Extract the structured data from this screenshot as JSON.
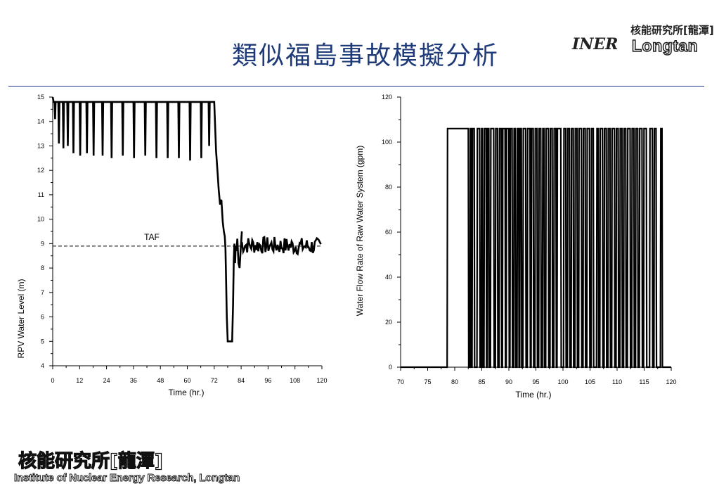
{
  "slide": {
    "title": "類似福島事故模擬分析"
  },
  "logo_top": {
    "org": "核能研究所[龍潭]",
    "mark": "INER",
    "place": "Longtan"
  },
  "logo_bottom": {
    "org": "核能研究所[龍潭]",
    "name": "Institute of Nuclear Energy Research, Longtan"
  },
  "chart_data": [
    {
      "type": "line",
      "title": "",
      "xlabel": "Time (hr.)",
      "ylabel": "RPV Water Level (m)",
      "xlim": [
        0,
        120
      ],
      "ylim": [
        4,
        15
      ],
      "xticks": [
        0,
        12,
        24,
        36,
        48,
        60,
        72,
        84,
        96,
        108,
        120
      ],
      "yticks": [
        4,
        5,
        6,
        7,
        8,
        9,
        10,
        11,
        12,
        13,
        14,
        15
      ],
      "grid": false,
      "reference_line": {
        "label": "TAF",
        "y": 8.9,
        "style": "dashed"
      },
      "cycles": [
        {
          "t": 0.8,
          "min": 14.1
        },
        {
          "t": 2.5,
          "min": 13.1
        },
        {
          "t": 4.5,
          "min": 12.9
        },
        {
          "t": 6.5,
          "min": 13.0
        },
        {
          "t": 9,
          "min": 12.7
        },
        {
          "t": 12,
          "min": 12.6
        },
        {
          "t": 15,
          "min": 12.7
        },
        {
          "t": 18,
          "min": 12.6
        },
        {
          "t": 22,
          "min": 12.6
        },
        {
          "t": 26,
          "min": 12.5
        },
        {
          "t": 31,
          "min": 12.6
        },
        {
          "t": 36,
          "min": 12.5
        },
        {
          "t": 41,
          "min": 12.6
        },
        {
          "t": 46,
          "min": 12.5
        },
        {
          "t": 51,
          "min": 12.5
        },
        {
          "t": 56,
          "min": 12.5
        },
        {
          "t": 61,
          "min": 12.4
        },
        {
          "t": 66,
          "min": 12.5
        },
        {
          "t": 69.5,
          "min": 13.0
        }
      ],
      "series": [
        {
          "x": [
            72,
            72.8,
            73.5,
            74.0,
            74.6,
            75.2,
            75.8,
            76.3,
            76.7,
            77.0,
            77.3,
            77.6,
            78.0,
            79.0,
            80.0,
            80.4,
            80.7,
            81.0,
            81.3,
            81.6,
            81.9,
            82.3,
            82.8,
            83.3,
            83.8,
            84.3
          ],
          "y": [
            14.8,
            12.8,
            11.9,
            11.2,
            10.6,
            10.8,
            9.9,
            9.5,
            9.3,
            8.8,
            7.5,
            6.0,
            5.0,
            5.0,
            5.0,
            6.5,
            8.3,
            9.0,
            8.2,
            8.9,
            8.7,
            9.2,
            8.2,
            8.0,
            8.8,
            9.5
          ]
        }
      ],
      "noise_band": {
        "from": 84,
        "to": 120,
        "mean": 8.95,
        "range": [
          8.5,
          9.3
        ]
      }
    },
    {
      "type": "line",
      "title": "",
      "xlabel": "Time (hr.)",
      "ylabel": "Water Flow Rate of Raw Water System (gpm)",
      "xlim": [
        70,
        120
      ],
      "ylim": [
        0,
        120
      ],
      "xticks": [
        70,
        75,
        80,
        85,
        90,
        95,
        100,
        105,
        110,
        115,
        120
      ],
      "yticks": [
        0,
        20,
        40,
        60,
        80,
        100,
        120
      ],
      "grid": false,
      "on_value": 106,
      "on_intervals": [
        [
          78.6,
          82.5
        ],
        [
          82.8,
          83.0
        ],
        [
          83.2,
          83.6
        ],
        [
          84.1,
          84.6
        ],
        [
          84.9,
          85.1
        ],
        [
          85.4,
          85.8
        ],
        [
          86.0,
          86.3
        ],
        [
          86.6,
          87.2
        ],
        [
          87.5,
          87.9
        ],
        [
          88.2,
          88.6
        ],
        [
          88.8,
          89.3
        ],
        [
          89.5,
          90.0
        ],
        [
          90.2,
          90.6
        ],
        [
          90.9,
          91.2
        ],
        [
          91.5,
          91.8
        ],
        [
          92.0,
          92.3
        ],
        [
          92.6,
          93.1
        ],
        [
          93.4,
          93.9
        ],
        [
          94.1,
          94.5
        ],
        [
          94.8,
          95.2
        ],
        [
          95.5,
          95.9
        ],
        [
          96.2,
          96.5
        ],
        [
          96.8,
          97.3
        ],
        [
          97.6,
          98.0
        ],
        [
          98.3,
          98.7
        ],
        [
          98.9,
          99.6
        ],
        [
          100.1,
          100.5
        ],
        [
          100.8,
          101.2
        ],
        [
          101.5,
          101.9
        ],
        [
          102.2,
          102.6
        ],
        [
          102.9,
          103.4
        ],
        [
          103.7,
          104.1
        ],
        [
          104.4,
          104.9
        ],
        [
          105.2,
          105.6
        ],
        [
          106.2,
          106.5
        ],
        [
          106.8,
          107.3
        ],
        [
          107.6,
          108.0
        ],
        [
          108.3,
          108.7
        ],
        [
          109.0,
          109.5
        ],
        [
          109.8,
          110.2
        ],
        [
          110.5,
          110.9
        ],
        [
          111.2,
          111.6
        ],
        [
          111.9,
          112.4
        ],
        [
          112.7,
          113.1
        ],
        [
          113.4,
          113.8
        ],
        [
          114.1,
          114.6
        ],
        [
          114.9,
          115.4
        ],
        [
          116.0,
          116.5
        ],
        [
          116.8,
          117.2
        ],
        [
          118.0,
          118.3
        ]
      ]
    }
  ]
}
